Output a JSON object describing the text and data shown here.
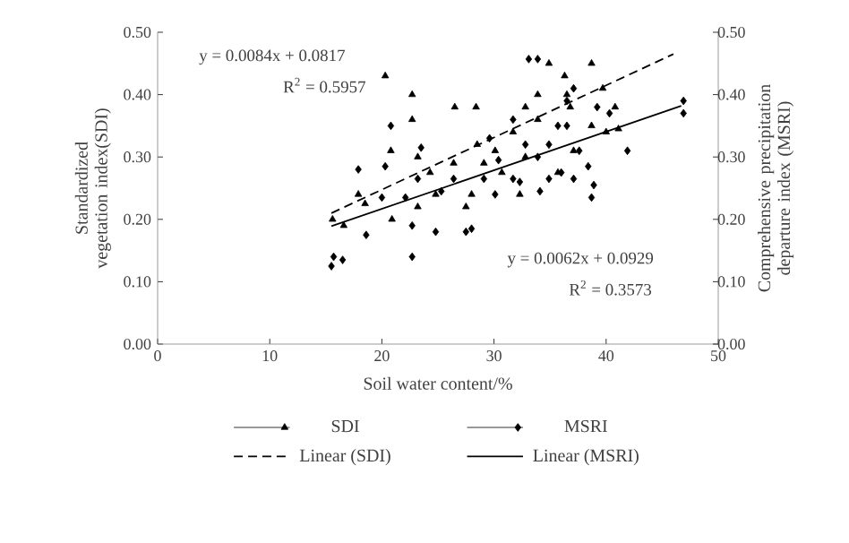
{
  "chart_data": {
    "type": "scatter",
    "xlabel": "Soil water content/%",
    "ylabel": "Standardized vegetation index(SDI)",
    "y2label": "Comprehensive precipitation departure index (MSRI)",
    "xlim": [
      0,
      50
    ],
    "xticks": [
      0,
      10,
      20,
      30,
      40,
      50
    ],
    "ylim": [
      0,
      0.5
    ],
    "yticks": [
      {
        "value": 0,
        "label": "0.00"
      },
      {
        "value": 0.1,
        "label": "0.10"
      },
      {
        "value": 0.2,
        "label": "0.20"
      },
      {
        "value": 0.3,
        "label": "0.30"
      },
      {
        "value": 0.4,
        "label": "0.40"
      },
      {
        "value": 0.5,
        "label": "0.50"
      }
    ],
    "y2lim": [
      0,
      0.5
    ],
    "y2ticks": [
      {
        "value": 0,
        "label": "0.00"
      },
      {
        "value": 0.1,
        "label": "0.10"
      },
      {
        "value": 0.2,
        "label": "0.20"
      },
      {
        "value": 0.3,
        "label": "0.30"
      },
      {
        "value": 0.4,
        "label": "0.40"
      },
      {
        "value": 0.5,
        "label": "0.50"
      }
    ],
    "legend": "bottom",
    "grid": false,
    "series": [
      {
        "name": "SDI",
        "marker": "triangle",
        "color": "#000000",
        "x": [
          20.3,
          22.7,
          22.7,
          26.5,
          28.4,
          20.8,
          17.9,
          15.6,
          16.6,
          20.9,
          18.5,
          23.2,
          24.3,
          27.5,
          28.0,
          29.1,
          30.1,
          31.7,
          32.8,
          33.9,
          34.9,
          36.3,
          36.8,
          38.7,
          39.7,
          40.8,
          40.0,
          37.1,
          35.7,
          32.8,
          32.3,
          30.7,
          26.4,
          24.8,
          23.2,
          36.5,
          33.9,
          38.7,
          28.5,
          41.1
        ],
        "values": [
          0.43,
          0.4,
          0.36,
          0.38,
          0.38,
          0.31,
          0.24,
          0.2,
          0.19,
          0.2,
          0.225,
          0.3,
          0.275,
          0.22,
          0.24,
          0.29,
          0.31,
          0.34,
          0.3,
          0.36,
          0.45,
          0.43,
          0.38,
          0.45,
          0.41,
          0.38,
          0.34,
          0.31,
          0.275,
          0.38,
          0.24,
          0.275,
          0.29,
          0.24,
          0.22,
          0.4,
          0.4,
          0.35,
          0.32,
          0.345
        ]
      },
      {
        "name": "MSRI",
        "marker": "diamond",
        "axis": "y2",
        "color": "#000000",
        "x": [
          15.7,
          16.5,
          15.5,
          17.9,
          18.6,
          20.8,
          20.3,
          22.7,
          22.7,
          22.1,
          23.2,
          24.8,
          25.3,
          26.4,
          27.5,
          28.0,
          29.1,
          30.1,
          30.4,
          31.7,
          32.3,
          32.8,
          33.1,
          33.9,
          33.9,
          34.1,
          34.9,
          35.7,
          36.0,
          37.1,
          36.5,
          37.6,
          38.4,
          38.7,
          38.9,
          39.2,
          40.3,
          41.9,
          46.9,
          46.9,
          31.7,
          20.0,
          23.5,
          29.6,
          36.5,
          37.1,
          34.9
        ],
        "values": [
          0.14,
          0.135,
          0.125,
          0.28,
          0.175,
          0.35,
          0.285,
          0.14,
          0.19,
          0.235,
          0.265,
          0.18,
          0.245,
          0.265,
          0.18,
          0.185,
          0.265,
          0.24,
          0.295,
          0.265,
          0.26,
          0.32,
          0.457,
          0.457,
          0.3,
          0.245,
          0.32,
          0.35,
          0.275,
          0.265,
          0.39,
          0.31,
          0.285,
          0.235,
          0.255,
          0.38,
          0.37,
          0.31,
          0.39,
          0.37,
          0.36,
          0.235,
          0.315,
          0.33,
          0.35,
          0.41,
          0.265
        ]
      },
      {
        "name": "Linear (SDI)",
        "type": "line",
        "line_style": "dashed",
        "color": "#000000",
        "x": [
          15.5,
          46.0
        ],
        "values": [
          0.21,
          0.465
        ]
      },
      {
        "name": "Linear (MSRI)",
        "type": "line",
        "line_style": "solid",
        "color": "#000000",
        "x": [
          15.5,
          46.7
        ],
        "values": [
          0.189,
          0.382
        ]
      }
    ],
    "annotations": [
      "y = 0.0084x + 0.0817",
      "R$^{2}$ = 0.5957",
      "y = 0.0062x + 0.0929",
      "R$^{2}$ = 0.3573"
    ]
  }
}
